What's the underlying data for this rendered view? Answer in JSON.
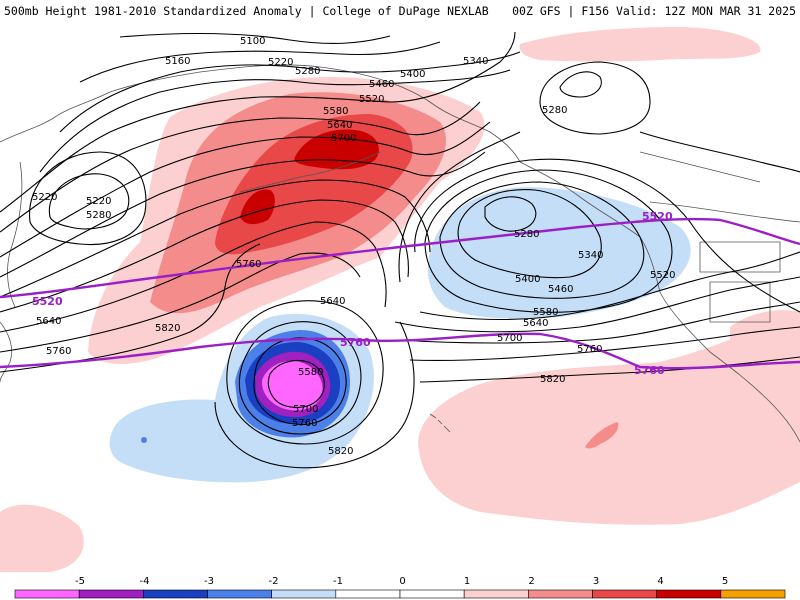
{
  "header": {
    "title_left": "500mb Height 1981-2010 Standardized Anomaly | College of DuPage NEXLAB",
    "title_right": "00Z GFS | F156 Valid: 12Z MON MAR 31 2025"
  },
  "contour_labels": [
    {
      "id": "lbl-5100",
      "text": "5100"
    },
    {
      "id": "lbl-5160",
      "text": "5160"
    },
    {
      "id": "lbl-5220-top",
      "text": "5220"
    },
    {
      "id": "lbl-5280-top",
      "text": "5280"
    },
    {
      "id": "lbl-5340-top",
      "text": "5340"
    },
    {
      "id": "lbl-5400-top",
      "text": "5400"
    },
    {
      "id": "lbl-5460-top",
      "text": "5460"
    },
    {
      "id": "lbl-5520-top",
      "text": "5520"
    },
    {
      "id": "lbl-5580-top",
      "text": "5580"
    },
    {
      "id": "lbl-5640-top",
      "text": "5640"
    },
    {
      "id": "lbl-5700-top",
      "text": "5700"
    },
    {
      "id": "lbl-5280-ne",
      "text": "5280"
    },
    {
      "id": "lbl-5220-w",
      "text": "5220"
    },
    {
      "id": "lbl-5220-w2",
      "text": "5220"
    },
    {
      "id": "lbl-5280-w",
      "text": "5280"
    },
    {
      "id": "lbl-5640-w",
      "text": "5640"
    },
    {
      "id": "lbl-5760-w",
      "text": "5760"
    },
    {
      "id": "lbl-5760-mid",
      "text": "5760"
    },
    {
      "id": "lbl-5820-w",
      "text": "5820"
    },
    {
      "id": "lbl-5640-mid",
      "text": "5640"
    },
    {
      "id": "lbl-5580-low",
      "text": "5580"
    },
    {
      "id": "lbl-5700-low",
      "text": "5700"
    },
    {
      "id": "lbl-5760-low",
      "text": "5760"
    },
    {
      "id": "lbl-5820-low",
      "text": "5820"
    },
    {
      "id": "lbl-5280-e",
      "text": "5280"
    },
    {
      "id": "lbl-5340-e",
      "text": "5340"
    },
    {
      "id": "lbl-5400-e",
      "text": "5400"
    },
    {
      "id": "lbl-5460-e",
      "text": "5460"
    },
    {
      "id": "lbl-5580-e",
      "text": "5580"
    },
    {
      "id": "lbl-5640-e",
      "text": "5640"
    },
    {
      "id": "lbl-5700-e",
      "text": "5700"
    },
    {
      "id": "lbl-5760-e",
      "text": "5760"
    },
    {
      "id": "lbl-5820-e",
      "text": "5820"
    },
    {
      "id": "lbl-5520-e",
      "text": "5520"
    }
  ],
  "climo_labels": [
    {
      "id": "clim-5520-w",
      "text": "5520"
    },
    {
      "id": "clim-5760-w",
      "text": "5760"
    },
    {
      "id": "clim-5520-e",
      "text": "5520"
    },
    {
      "id": "clim-5760-e",
      "text": "5760"
    }
  ],
  "colors": {
    "neg5": "#ff66ff",
    "neg4": "#a020c0",
    "neg3": "#1a3fc0",
    "neg2": "#4d7fe8",
    "neg1": "#c5def7",
    "pos1": "#fcd0d0",
    "pos2": "#f58c8c",
    "pos3": "#e84848",
    "pos4": "#c80000",
    "pos5": "#f4a000",
    "climo": "#9b1fc7",
    "contour": "#000000",
    "coast": "#555555"
  },
  "colorbar": {
    "ticks": [
      "-5",
      "-4",
      "-3",
      "-2",
      "-1",
      "0",
      "1",
      "2",
      "3",
      "4",
      "5"
    ],
    "bins": [
      "#ff66ff",
      "#a020c0",
      "#1a3fc0",
      "#4d7fe8",
      "#c5def7",
      "#ffffff",
      "#ffffff",
      "#fcd0d0",
      "#f58c8c",
      "#e84848",
      "#c80000",
      "#f4a000"
    ]
  }
}
